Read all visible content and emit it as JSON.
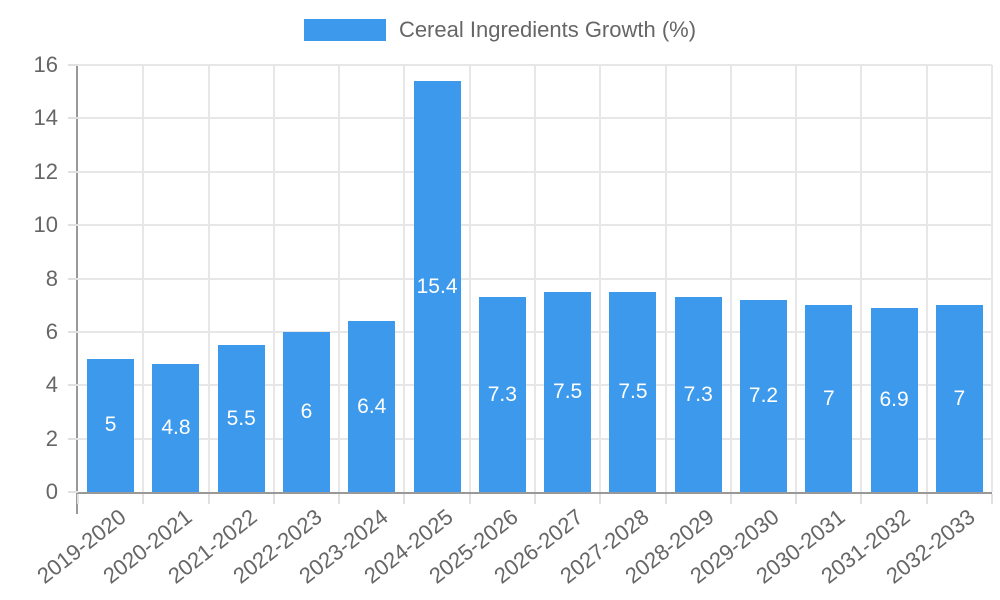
{
  "chart_data": {
    "type": "bar",
    "title": "Cereal Ingredients Growth (%)",
    "legend_position": "top",
    "legend_entries": [
      "Cereal Ingredients Growth (%)"
    ],
    "categories": [
      "2019-2020",
      "2020-2021",
      "2021-2022",
      "2022-2023",
      "2023-2024",
      "2024-2025",
      "2025-2026",
      "2026-2027",
      "2027-2028",
      "2028-2029",
      "2029-2030",
      "2030-2031",
      "2031-2032",
      "2032-2033"
    ],
    "values": [
      5,
      4.8,
      5.5,
      6,
      6.4,
      15.4,
      7.3,
      7.5,
      7.5,
      7.3,
      7.2,
      7,
      6.9,
      7
    ],
    "bar_labels": [
      "5",
      "4.8",
      "5.5",
      "6",
      "6.4",
      "15.4",
      "7.3",
      "7.5",
      "7.5",
      "7.3",
      "7.2",
      "7",
      "6.9",
      "7"
    ],
    "bar_label_position": "center",
    "xlabel": "",
    "ylabel": "",
    "ylim": [
      0,
      16
    ],
    "yticks": [
      0,
      2,
      4,
      6,
      8,
      10,
      12,
      14,
      16
    ],
    "grid": true,
    "colors": {
      "bar": "#3C99EB",
      "bar_label_text": "#FFFFFF",
      "axis_line": "#999999",
      "gridline": "#E7E7E7",
      "tick_mark": "#E0E0E0",
      "tick_text": "#666666",
      "legend_text": "#666666",
      "background": "#FFFFFF"
    }
  }
}
